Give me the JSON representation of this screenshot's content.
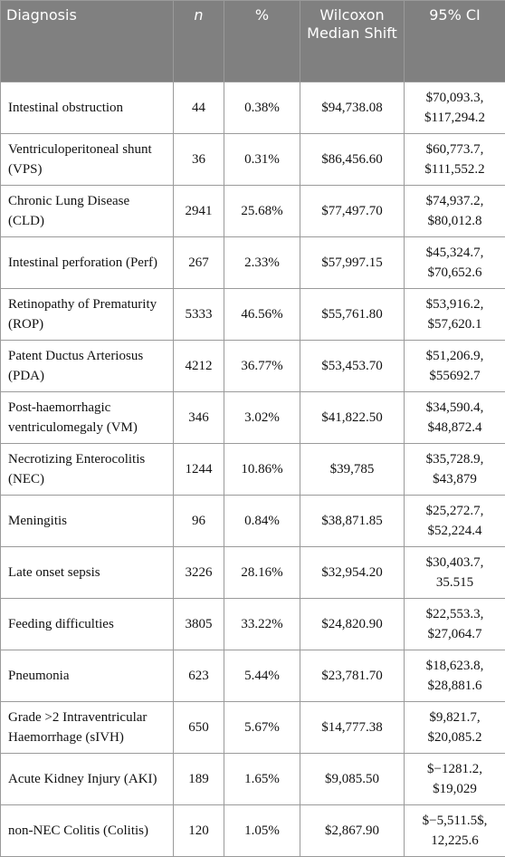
{
  "table": {
    "header": [
      "Diagnosis",
      "n",
      "%",
      "Wilcoxon Median Shift",
      "95% CI"
    ],
    "rows": [
      [
        "Intestinal obstruction",
        "44",
        "0.38%",
        "$94,738.08",
        "$70,093.3, $117,294.2"
      ],
      [
        "Ventriculoperitoneal shunt (VPS)",
        "36",
        "0.31%",
        "$86,456.60",
        "$60,773.7, $111,552.2"
      ],
      [
        "Chronic Lung Disease (CLD)",
        "2941",
        "25.68%",
        "$77,497.70",
        "$74,937.2, $80,012.8"
      ],
      [
        "Intestinal perforation (Perf)",
        "267",
        "2.33%",
        "$57,997.15",
        "$45,324.7, $70,652.6"
      ],
      [
        "Retinopathy of Prematurity (ROP)",
        "5333",
        "46.56%",
        "$55,761.80",
        "$53,916.2, $57,620.1"
      ],
      [
        "Patent Ductus Arteriosus (PDA)",
        "4212",
        "36.77%",
        "$53,453.70",
        "$51,206.9, $55692.7"
      ],
      [
        "Post-haemorrhagic ventriculomegaly (VM)",
        "346",
        "3.02%",
        "$41,822.50",
        "$34,590.4, $48,872.4"
      ],
      [
        "Necrotizing Enterocolitis (NEC)",
        "1244",
        "10.86%",
        "$39,785",
        "$35,728.9, $43,879"
      ],
      [
        "Meningitis",
        "96",
        "0.84%",
        "$38,871.85",
        "$25,272.7, $52,224.4"
      ],
      [
        "Late onset sepsis",
        "3226",
        "28.16%",
        "$32,954.20",
        "$30,403.7, 35.515"
      ],
      [
        "Feeding difficulties",
        "3805",
        "33.22%",
        "$24,820.90",
        "$22,553.3, $27,064.7"
      ],
      [
        "Pneumonia",
        "623",
        "5.44%",
        "$23,781.70",
        "$18,623.8, $28,881.6"
      ],
      [
        "Grade >2 Intraventricular Haemorrhage (sIVH)",
        "650",
        "5.67%",
        "$14,777.38",
        "$9,821.7, $20,085.2"
      ],
      [
        "Acute Kidney Injury (AKI)",
        "189",
        "1.65%",
        "$9,085.50",
        "$−1281.2, $19,029"
      ],
      [
        "non-NEC Colitis (Colitis)",
        "120",
        "1.05%",
        "$2,867.90",
        "$−5,511.5$, 12,225.6"
      ]
    ]
  }
}
